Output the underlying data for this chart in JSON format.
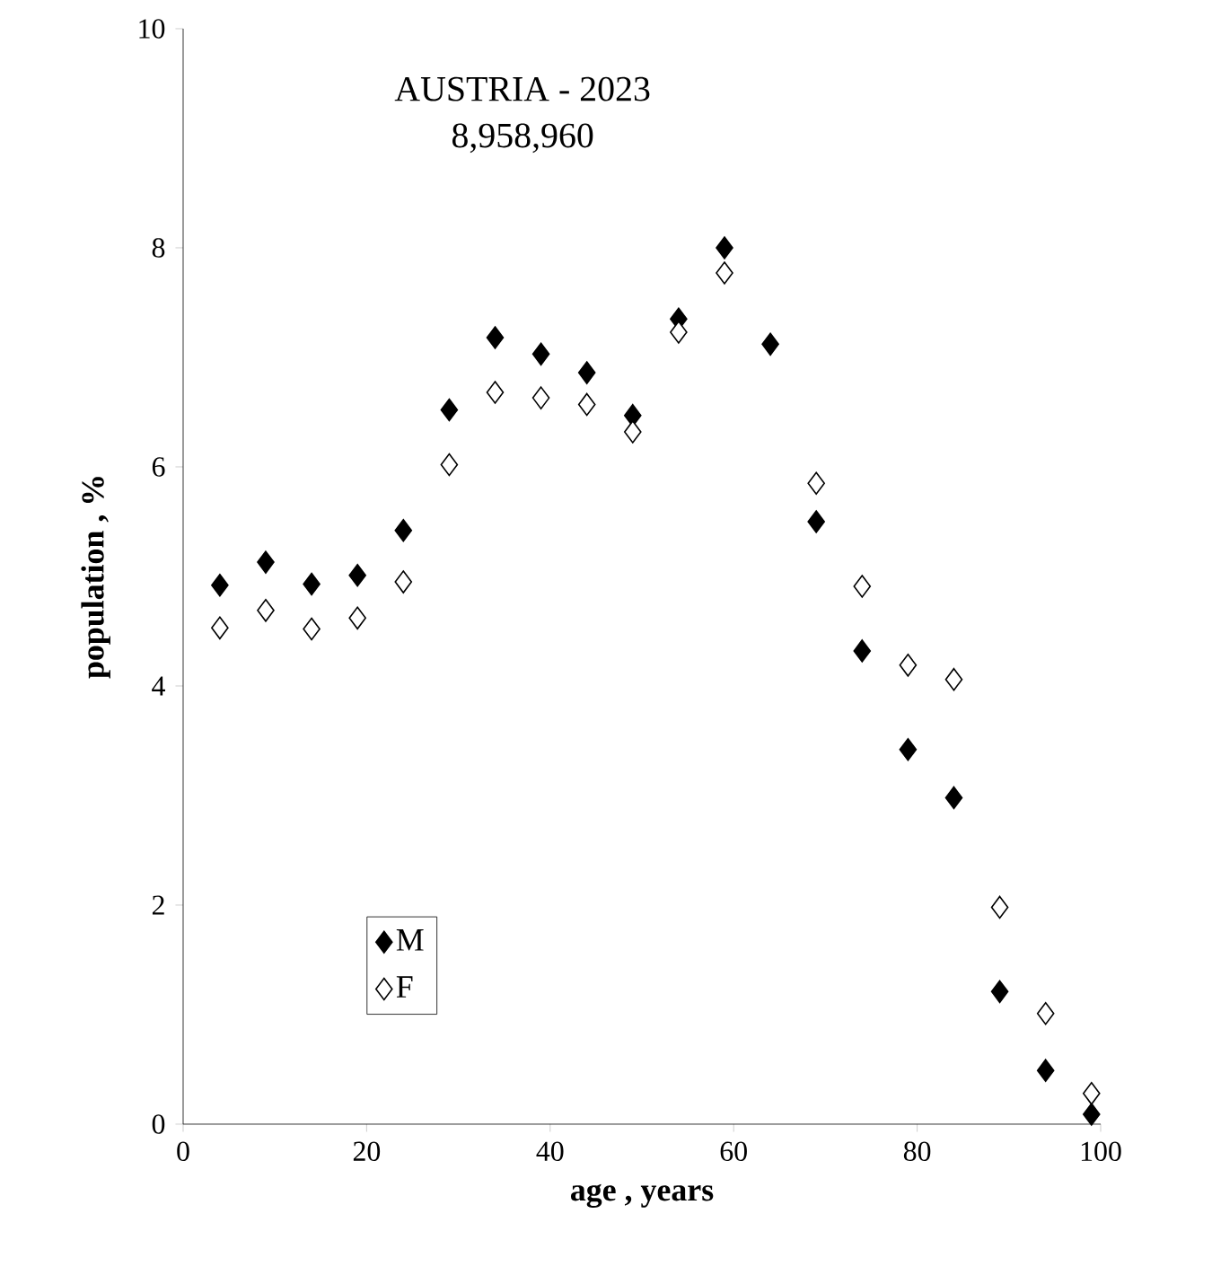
{
  "chart_data": {
    "type": "scatter",
    "title": "AUSTRIA - 2023",
    "subtitle": "8,958,960",
    "xlabel": "age  ,  years",
    "ylabel": "population  ,  %",
    "x": [
      4,
      9,
      14,
      19,
      24,
      29,
      34,
      39,
      44,
      49,
      54,
      59,
      64,
      69,
      74,
      79,
      84,
      89,
      94,
      99
    ],
    "series": [
      {
        "name": "M",
        "color": "#000000",
        "values": [
          4.92,
          5.13,
          4.93,
          5.01,
          5.42,
          6.52,
          7.18,
          7.03,
          6.86,
          6.47,
          7.35,
          8.0,
          7.12,
          5.5,
          4.32,
          3.42,
          2.98,
          1.21,
          0.49,
          0.09
        ]
      },
      {
        "name": "F",
        "color": "#000000",
        "values": [
          4.53,
          4.69,
          4.52,
          4.62,
          4.95,
          6.02,
          6.68,
          6.63,
          6.57,
          6.32,
          7.23,
          7.77,
          null,
          5.85,
          4.91,
          4.19,
          4.06,
          1.98,
          1.01,
          0.28
        ]
      }
    ],
    "xlim": [
      0,
      100
    ],
    "ylim": [
      0,
      10
    ],
    "xticks": [
      0,
      20,
      40,
      60,
      80,
      100
    ],
    "yticks": [
      0,
      2,
      4,
      6,
      8,
      10
    ],
    "marker": "diamond",
    "legend": "bottom left",
    "grid": false
  }
}
